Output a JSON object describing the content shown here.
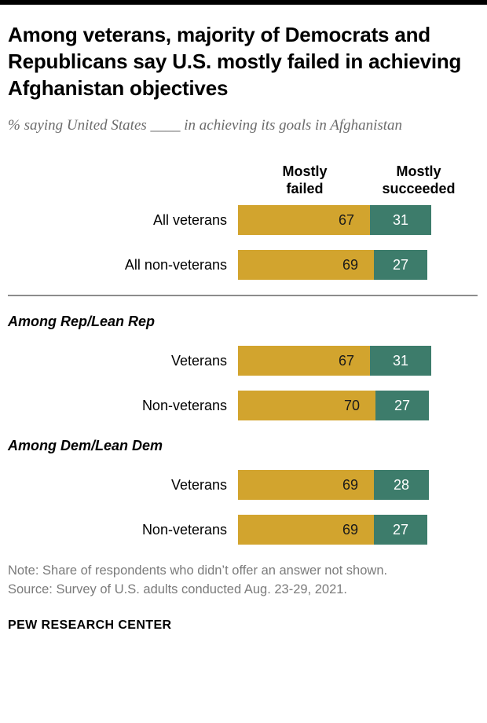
{
  "chart_data": {
    "type": "bar",
    "orientation": "horizontal",
    "stacked": true,
    "value_unit": "percent",
    "axis_max": 100,
    "title": "Among veterans, majority of Democrats and Republicans say U.S. mostly failed in achieving Afghanistan objectives",
    "subtitle": "% saying United States ____ in achieving its goals in Afghanistan",
    "series": [
      "Mostly failed",
      "Mostly succeeded"
    ],
    "colors": {
      "mostly_failed": "#D2A42E",
      "mostly_succeeded": "#3D7C6B"
    },
    "groups": [
      {
        "header": "",
        "rows": [
          {
            "label": "All veterans",
            "failed": 67,
            "succeeded": 31
          },
          {
            "label": "All non-veterans",
            "failed": 69,
            "succeeded": 27
          }
        ]
      },
      {
        "header": "Among Rep/Lean Rep",
        "rows": [
          {
            "label": "Veterans",
            "failed": 67,
            "succeeded": 31
          },
          {
            "label": "Non-veterans",
            "failed": 70,
            "succeeded": 27
          }
        ]
      },
      {
        "header": "Among Dem/Lean Dem",
        "rows": [
          {
            "label": "Veterans",
            "failed": 69,
            "succeeded": 28
          },
          {
            "label": "Non-veterans",
            "failed": 69,
            "succeeded": 27
          }
        ]
      }
    ]
  },
  "footer": {
    "note": "Note: Share of respondents who didn’t offer an answer not shown.",
    "source": "Source: Survey of U.S. adults conducted Aug. 23-29, 2021.",
    "brand": "PEW RESEARCH CENTER"
  }
}
